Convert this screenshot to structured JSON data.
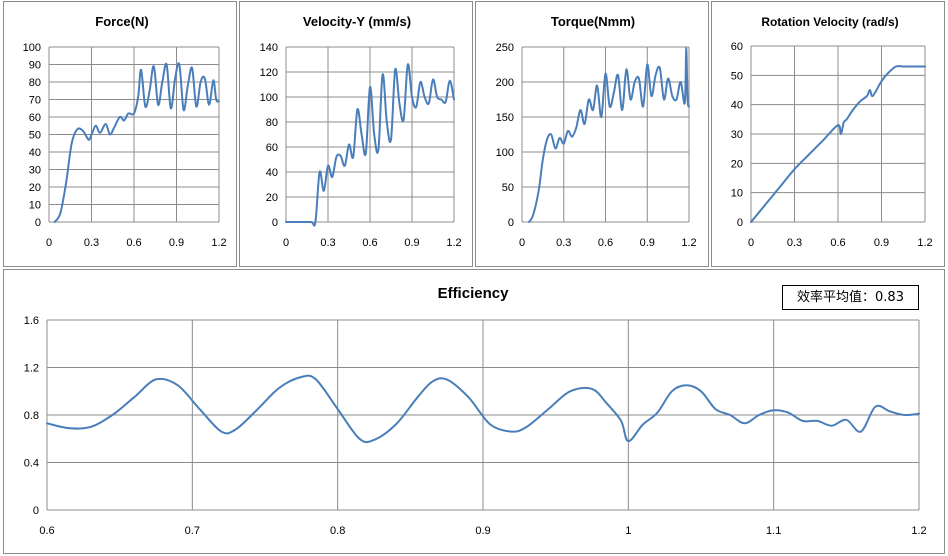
{
  "colors": {
    "series": "#4a7ebb",
    "grid": "#8c8c8c",
    "panel_border": "#8c8c8c"
  },
  "efficiency_average": {
    "label": "效率平均值：0.83"
  },
  "chart_data": [
    {
      "id": "force",
      "type": "line",
      "title": "Force(N)",
      "xlim": [
        0,
        1.2
      ],
      "ylim": [
        0,
        100
      ],
      "xticks": [
        0,
        0.3,
        0.6,
        0.9,
        1.2
      ],
      "xtick_labels": [
        "0",
        "0.3",
        "0.6",
        "0.9",
        "1.2"
      ],
      "yticks": [
        0,
        10,
        20,
        30,
        40,
        50,
        60,
        70,
        80,
        90,
        100
      ],
      "ytick_labels": [
        "0",
        "10",
        "20",
        "30",
        "40",
        "50",
        "60",
        "70",
        "80",
        "90",
        "100"
      ],
      "grid": true,
      "series": [
        {
          "x": [
            0.04,
            0.08,
            0.12,
            0.16,
            0.2,
            0.24,
            0.28,
            0.3,
            0.33,
            0.36,
            0.4,
            0.43,
            0.46,
            0.5,
            0.53,
            0.56,
            0.6,
            0.63,
            0.65,
            0.68,
            0.71,
            0.74,
            0.77,
            0.8,
            0.83,
            0.86,
            0.89,
            0.92,
            0.95,
            0.98,
            1.01,
            1.04,
            1.07,
            1.1,
            1.13,
            1.16,
            1.18,
            1.2
          ],
          "y": [
            0,
            5,
            22,
            45,
            53,
            52,
            47,
            50,
            55,
            51,
            56,
            50,
            54,
            60,
            58,
            62,
            62,
            72,
            87,
            66,
            75,
            89,
            67,
            80,
            90,
            65,
            82,
            90,
            64,
            78,
            88,
            66,
            80,
            82,
            67,
            81,
            70,
            69
          ]
        }
      ]
    },
    {
      "id": "velocity_y",
      "type": "line",
      "title": "Velocity-Y (mm/s)",
      "xlim": [
        0,
        1.2
      ],
      "ylim": [
        0,
        140
      ],
      "xticks": [
        0,
        0.3,
        0.6,
        0.9,
        1.2
      ],
      "xtick_labels": [
        "0",
        "0.3",
        "0.6",
        "0.9",
        "1.2"
      ],
      "yticks": [
        0,
        20,
        40,
        60,
        80,
        100,
        120,
        140
      ],
      "ytick_labels": [
        "0",
        "20",
        "40",
        "60",
        "80",
        "100",
        "120",
        "140"
      ],
      "grid": true,
      "series": [
        {
          "x": [
            0,
            0.1,
            0.18,
            0.21,
            0.24,
            0.27,
            0.3,
            0.33,
            0.36,
            0.39,
            0.42,
            0.45,
            0.48,
            0.51,
            0.54,
            0.57,
            0.6,
            0.63,
            0.66,
            0.69,
            0.72,
            0.75,
            0.78,
            0.81,
            0.84,
            0.87,
            0.9,
            0.93,
            0.96,
            0.99,
            1.02,
            1.05,
            1.08,
            1.11,
            1.14,
            1.17,
            1.2
          ],
          "y": [
            0,
            0,
            0,
            0,
            40,
            25,
            45,
            36,
            52,
            53,
            45,
            62,
            52,
            90,
            70,
            55,
            108,
            70,
            58,
            118,
            80,
            66,
            122,
            95,
            82,
            126,
            100,
            92,
            112,
            100,
            95,
            114,
            100,
            98,
            96,
            113,
            98
          ]
        }
      ]
    },
    {
      "id": "torque",
      "type": "line",
      "title": "Torque(Nmm)",
      "xlim": [
        0,
        1.2
      ],
      "ylim": [
        0,
        250
      ],
      "xticks": [
        0,
        0.3,
        0.6,
        0.9,
        1.2
      ],
      "xtick_labels": [
        "0",
        "0.3",
        "0.6",
        "0.9",
        "1.2"
      ],
      "yticks": [
        0,
        50,
        100,
        150,
        200,
        250
      ],
      "ytick_labels": [
        "0",
        "50",
        "100",
        "150",
        "200",
        "250"
      ],
      "grid": true,
      "series": [
        {
          "x": [
            0.05,
            0.08,
            0.12,
            0.15,
            0.18,
            0.21,
            0.24,
            0.27,
            0.3,
            0.33,
            0.36,
            0.39,
            0.42,
            0.45,
            0.48,
            0.51,
            0.54,
            0.57,
            0.6,
            0.63,
            0.66,
            0.69,
            0.72,
            0.75,
            0.78,
            0.81,
            0.84,
            0.87,
            0.9,
            0.93,
            0.96,
            0.99,
            1.02,
            1.05,
            1.08,
            1.11,
            1.14,
            1.17,
            1.18,
            1.19,
            1.2
          ],
          "y": [
            0,
            10,
            45,
            90,
            118,
            125,
            105,
            120,
            112,
            130,
            122,
            135,
            160,
            140,
            175,
            160,
            195,
            150,
            212,
            165,
            185,
            210,
            160,
            218,
            175,
            200,
            205,
            165,
            225,
            180,
            210,
            220,
            175,
            205,
            180,
            175,
            200,
            170,
            248,
            175,
            165
          ]
        }
      ]
    },
    {
      "id": "rotation_velocity",
      "type": "line",
      "title": "Rotation Velocity (rad/s)",
      "xlim": [
        0,
        1.2
      ],
      "ylim": [
        0,
        60
      ],
      "xticks": [
        0,
        0.3,
        0.6,
        0.9,
        1.2
      ],
      "xtick_labels": [
        "0",
        "0.3",
        "0.6",
        "0.9",
        "1.2"
      ],
      "yticks": [
        0,
        10,
        20,
        30,
        40,
        50,
        60
      ],
      "ytick_labels": [
        "0",
        "10",
        "20",
        "30",
        "40",
        "50",
        "60"
      ],
      "grid": true,
      "series": [
        {
          "x": [
            0,
            0.1,
            0.2,
            0.3,
            0.4,
            0.5,
            0.6,
            0.62,
            0.64,
            0.66,
            0.7,
            0.75,
            0.8,
            0.82,
            0.84,
            0.9,
            0.95,
            1.0,
            1.05,
            1.1,
            1.15,
            1.2
          ],
          "y": [
            0,
            6,
            12,
            18,
            23,
            28,
            33,
            30,
            34,
            35,
            38,
            41,
            43,
            45,
            43,
            48,
            51,
            53,
            53,
            53,
            53,
            53
          ]
        }
      ]
    },
    {
      "id": "efficiency",
      "type": "line",
      "title": "Efficiency",
      "xlim": [
        0.6,
        1.2
      ],
      "ylim": [
        0,
        1.6
      ],
      "xticks": [
        0.6,
        0.7,
        0.8,
        0.9,
        1.0,
        1.1,
        1.2
      ],
      "xtick_labels": [
        "0.6",
        "0.7",
        "0.8",
        "0.9",
        "1",
        "1.1",
        "1.2"
      ],
      "yticks": [
        0,
        0.4,
        0.8,
        1.2,
        1.6
      ],
      "ytick_labels": [
        "0",
        "0.4",
        "0.8",
        "1.2",
        "1.6"
      ],
      "grid": true,
      "series": [
        {
          "x": [
            0.6,
            0.615,
            0.63,
            0.645,
            0.66,
            0.675,
            0.69,
            0.705,
            0.72,
            0.73,
            0.745,
            0.76,
            0.775,
            0.785,
            0.8,
            0.815,
            0.825,
            0.84,
            0.855,
            0.865,
            0.875,
            0.89,
            0.905,
            0.92,
            0.93,
            0.945,
            0.96,
            0.975,
            0.985,
            0.995,
            1.0,
            1.01,
            1.02,
            1.03,
            1.04,
            1.05,
            1.06,
            1.07,
            1.08,
            1.09,
            1.1,
            1.11,
            1.12,
            1.13,
            1.14,
            1.15,
            1.16,
            1.17,
            1.18,
            1.19,
            1.2
          ],
          "y": [
            0.73,
            0.69,
            0.7,
            0.8,
            0.95,
            1.1,
            1.05,
            0.85,
            0.66,
            0.68,
            0.85,
            1.03,
            1.12,
            1.1,
            0.85,
            0.6,
            0.59,
            0.72,
            0.95,
            1.08,
            1.1,
            0.95,
            0.72,
            0.66,
            0.7,
            0.85,
            1.0,
            1.02,
            0.9,
            0.75,
            0.58,
            0.72,
            0.82,
            1.0,
            1.05,
            1.0,
            0.85,
            0.8,
            0.73,
            0.8,
            0.84,
            0.82,
            0.75,
            0.75,
            0.71,
            0.76,
            0.66,
            0.87,
            0.83,
            0.8,
            0.81
          ]
        }
      ]
    }
  ]
}
